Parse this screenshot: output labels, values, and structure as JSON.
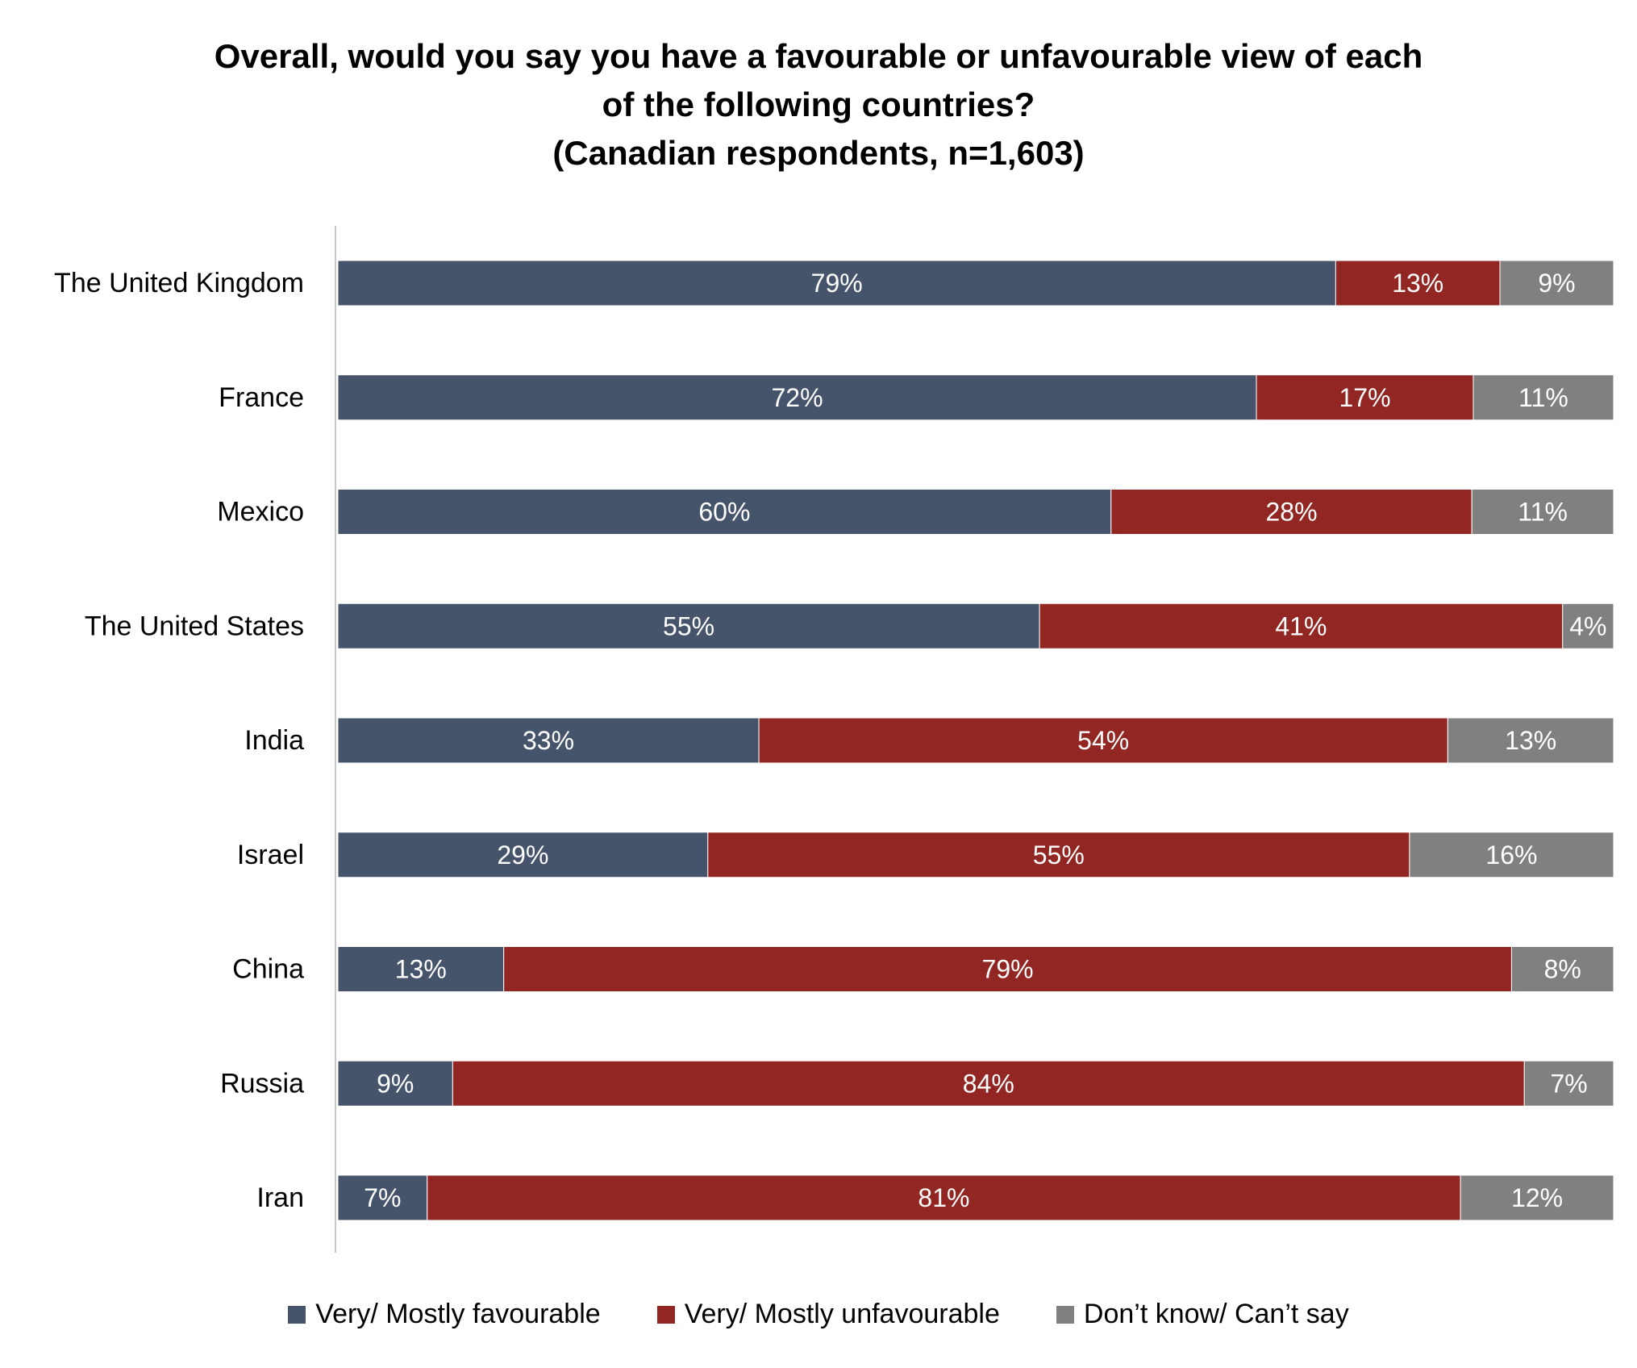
{
  "chart_data": {
    "type": "bar",
    "orientation": "horizontal",
    "stacked": true,
    "title_lines": [
      "Overall, would you say you have a favourable or unfavourable view of each",
      "of the following countries?",
      "(Canadian respondents, n=1,603)"
    ],
    "categories": [
      "The United Kingdom",
      "France",
      "Mexico",
      "The United States",
      "India",
      "Israel",
      "China",
      "Russia",
      "Iran"
    ],
    "series": [
      {
        "name": "Very/ Mostly favourable",
        "color": "#46546b",
        "values": [
          79,
          72,
          60,
          55,
          33,
          29,
          13,
          9,
          7
        ],
        "labels": [
          "79%",
          "72%",
          "60%",
          "55%",
          "33%",
          "29%",
          "13%",
          "9%",
          "7%"
        ]
      },
      {
        "name": "Very/ Mostly unfavourable",
        "color": "#922622",
        "values": [
          13,
          17,
          28,
          41,
          54,
          55,
          79,
          84,
          81
        ],
        "labels": [
          "13%",
          "17%",
          "28%",
          "41%",
          "54%",
          "55%",
          "79%",
          "84%",
          "81%"
        ]
      },
      {
        "name": "Don’t know/ Can’t say",
        "color": "#808080",
        "values": [
          9,
          11,
          11,
          4,
          13,
          16,
          8,
          7,
          12
        ],
        "labels": [
          "9%",
          "11%",
          "11%",
          "4%",
          "13%",
          "16%",
          "8%",
          "7%",
          "12%"
        ]
      }
    ],
    "legend_position": "bottom",
    "grid": false
  }
}
